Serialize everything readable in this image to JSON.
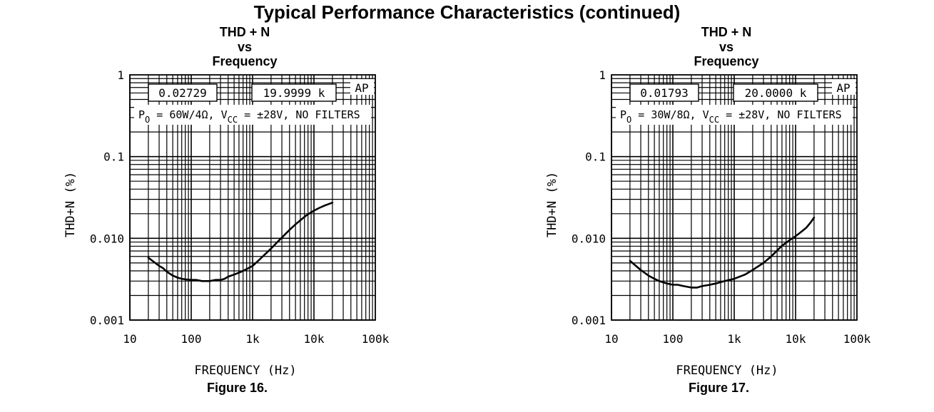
{
  "page_title": "Typical Performance Characteristics (continued)",
  "chart_data": [
    {
      "type": "line",
      "title_lines": [
        "THD + N",
        "vs",
        "Frequency"
      ],
      "figure_caption": "Figure 16.",
      "xlabel": "FREQUENCY (Hz)",
      "ylabel": "THD+N (%)",
      "x_scale": "log",
      "y_scale": "log",
      "xlim": [
        10,
        100000
      ],
      "ylim": [
        0.001,
        1
      ],
      "x_ticks": [
        10,
        100,
        1000,
        10000,
        100000
      ],
      "x_tick_labels": [
        "10",
        "100",
        "1k",
        "10k",
        "100k"
      ],
      "y_ticks": [
        0.001,
        0.01,
        0.1,
        1
      ],
      "y_tick_labels": [
        "0.001",
        "0.010",
        "0.1",
        "1"
      ],
      "grid": true,
      "annotations": {
        "readout_1": "0.02729",
        "readout_2": "19.9999 k",
        "ap_mark": "AP",
        "conditions": {
          "po": "P",
          "po_sub": "O",
          "po_value": " = 60W/4Ω, V",
          "vcc_sub": "CC",
          "vcc_rest": " = ±28V, NO FILTERS"
        }
      },
      "series": [
        {
          "x": [
            20,
            25,
            30,
            35,
            40,
            50,
            60,
            70,
            80,
            100,
            120,
            150,
            200,
            250,
            300,
            350,
            400,
            500,
            600,
            700,
            800,
            1000,
            1200,
            1500,
            2000,
            2500,
            3000,
            4000,
            5000,
            6000,
            7000,
            8000,
            10000,
            12000,
            15000,
            20000
          ],
          "y": [
            0.0058,
            0.0051,
            0.0046,
            0.0043,
            0.0039,
            0.0035,
            0.0033,
            0.0032,
            0.00315,
            0.0031,
            0.0031,
            0.003,
            0.003,
            0.0031,
            0.0031,
            0.0032,
            0.0034,
            0.0036,
            0.0038,
            0.004,
            0.0042,
            0.0046,
            0.0052,
            0.0061,
            0.0075,
            0.0089,
            0.0102,
            0.0127,
            0.0148,
            0.0166,
            0.0183,
            0.0197,
            0.0218,
            0.0234,
            0.0252,
            0.0273
          ]
        }
      ]
    },
    {
      "type": "line",
      "title_lines": [
        "THD + N",
        "vs",
        "Frequency"
      ],
      "figure_caption": "Figure 17.",
      "xlabel": "FREQUENCY (Hz)",
      "ylabel": "THD+N (%)",
      "x_scale": "log",
      "y_scale": "log",
      "xlim": [
        10,
        100000
      ],
      "ylim": [
        0.001,
        1
      ],
      "x_ticks": [
        10,
        100,
        1000,
        10000,
        100000
      ],
      "x_tick_labels": [
        "10",
        "100",
        "1k",
        "10k",
        "100k"
      ],
      "y_ticks": [
        0.001,
        0.01,
        0.1,
        1
      ],
      "y_tick_labels": [
        "0.001",
        "0.010",
        "0.1",
        "1"
      ],
      "grid": true,
      "annotations": {
        "readout_1": "0.01793",
        "readout_2": "20.0000 k",
        "ap_mark": "AP",
        "conditions": {
          "po": "P",
          "po_sub": "O",
          "po_value": " = 30W/8Ω, V",
          "vcc_sub": "CC",
          "vcc_rest": " = ±28V, NO FILTERS"
        }
      },
      "series": [
        {
          "x": [
            20,
            25,
            30,
            40,
            50,
            60,
            80,
            100,
            120,
            150,
            200,
            250,
            300,
            400,
            500,
            700,
            1000,
            1500,
            2000,
            3000,
            4000,
            5000,
            6000,
            8000,
            10000,
            12000,
            15000,
            18000,
            20000
          ],
          "y": [
            0.0053,
            0.0046,
            0.0041,
            0.0035,
            0.0032,
            0.003,
            0.0028,
            0.0027,
            0.0027,
            0.0026,
            0.0025,
            0.0025,
            0.0026,
            0.0027,
            0.0028,
            0.003,
            0.0032,
            0.0036,
            0.0041,
            0.005,
            0.006,
            0.0071,
            0.0081,
            0.0095,
            0.0106,
            0.0118,
            0.0135,
            0.016,
            0.0179
          ]
        }
      ]
    }
  ]
}
